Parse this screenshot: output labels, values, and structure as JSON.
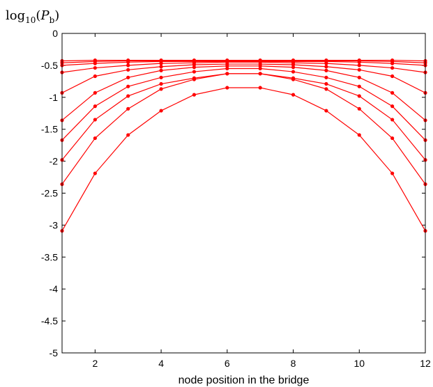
{
  "chart_data": {
    "type": "line",
    "title": "",
    "xlabel": "node position in the bridge",
    "ylabel": {
      "log": "log",
      "base": "10",
      "open": "(",
      "var": "P",
      "sub": "b",
      "close": ")"
    },
    "xlim": [
      1,
      12
    ],
    "ylim": [
      -5,
      0
    ],
    "x_ticks": [
      2,
      4,
      6,
      8,
      10,
      12
    ],
    "y_ticks": [
      0,
      -0.5,
      -1,
      -1.5,
      -2,
      -2.5,
      -3,
      -3.5,
      -4,
      -4.5,
      -5
    ],
    "y_tick_labels": [
      "0",
      "-0.5",
      "-1",
      "-1.5",
      "-2",
      "-2.5",
      "-3",
      "-3.5",
      "-4",
      "-4.5",
      "-5"
    ],
    "x_tick_labels": [
      "2",
      "4",
      "6",
      "8",
      "10",
      "12"
    ],
    "grid": false,
    "line_color": "#ff0000",
    "x": [
      1,
      2,
      3,
      4,
      5,
      6,
      7,
      8,
      9,
      10,
      11,
      12
    ],
    "series": [
      {
        "values": [
          -0.43,
          -0.42,
          -0.42,
          -0.42,
          -0.42,
          -0.42,
          -0.42,
          -0.42,
          -0.42,
          -0.42,
          -0.42,
          -0.43
        ]
      },
      {
        "values": [
          -0.46,
          -0.44,
          -0.43,
          -0.43,
          -0.43,
          -0.43,
          -0.43,
          -0.43,
          -0.43,
          -0.43,
          -0.44,
          -0.46
        ]
      },
      {
        "values": [
          -0.5,
          -0.47,
          -0.45,
          -0.44,
          -0.44,
          -0.44,
          -0.44,
          -0.44,
          -0.44,
          -0.45,
          -0.47,
          -0.5
        ]
      },
      {
        "values": [
          -0.61,
          -0.54,
          -0.5,
          -0.47,
          -0.46,
          -0.45,
          -0.45,
          -0.46,
          -0.47,
          -0.5,
          -0.54,
          -0.61
        ]
      },
      {
        "values": [
          -0.93,
          -0.67,
          -0.57,
          -0.52,
          -0.49,
          -0.48,
          -0.48,
          -0.49,
          -0.52,
          -0.57,
          -0.67,
          -0.93
        ]
      },
      {
        "values": [
          -1.36,
          -0.93,
          -0.69,
          -0.58,
          -0.53,
          -0.51,
          -0.51,
          -0.53,
          -0.58,
          -0.69,
          -0.93,
          -1.36
        ]
      },
      {
        "values": [
          -1.67,
          -1.14,
          -0.83,
          -0.69,
          -0.6,
          -0.55,
          -0.55,
          -0.6,
          -0.69,
          -0.83,
          -1.14,
          -1.67
        ]
      },
      {
        "values": [
          -1.98,
          -1.35,
          -0.98,
          -0.79,
          -0.7,
          -0.63,
          -0.63,
          -0.7,
          -0.79,
          -0.98,
          -1.35,
          -1.98
        ]
      },
      {
        "values": [
          -2.36,
          -1.64,
          -1.18,
          -0.87,
          -0.72,
          -0.63,
          -0.63,
          -0.72,
          -0.87,
          -1.18,
          -1.64,
          -2.36
        ]
      },
      {
        "values": [
          -3.09,
          -2.19,
          -1.59,
          -1.21,
          -0.96,
          -0.85,
          -0.85,
          -0.96,
          -1.21,
          -1.59,
          -2.19,
          -3.09
        ]
      }
    ]
  }
}
